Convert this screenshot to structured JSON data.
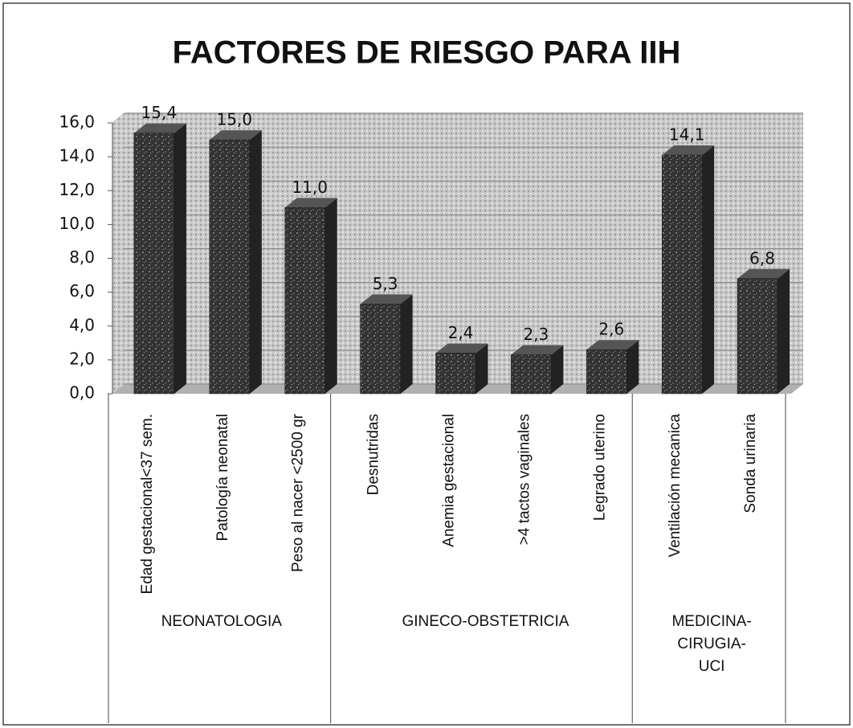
{
  "chart_data": {
    "type": "bar",
    "title": "FACTORES DE RIESGO PARA IIH",
    "groups": [
      {
        "name": "NEONATOLOGIA",
        "categories": [
          "Edad gestacional<37 sem.",
          "Patología neonatal",
          "Peso al nacer <2500 gr"
        ],
        "values": [
          15.4,
          15.0,
          11.0
        ],
        "value_labels": [
          "15,4",
          "15,0",
          "11,0"
        ]
      },
      {
        "name": "GINECO-OBSTETRICIA",
        "categories": [
          "Desnutridas",
          "Anemia gestacional",
          ">4 tactos vaginales",
          "Legrado uterino"
        ],
        "values": [
          5.3,
          2.4,
          2.3,
          2.6
        ],
        "value_labels": [
          "5,3",
          "2,4",
          "2,3",
          "2,6"
        ]
      },
      {
        "name": "MEDICINA-CIRUGIA-UCI",
        "categories": [
          "Ventilación mecanica",
          "Sonda urinaria"
        ],
        "values": [
          14.1,
          6.8
        ],
        "value_labels": [
          "14,1",
          "6,8"
        ]
      }
    ],
    "color": "#3a3a3a",
    "ylim": [
      0,
      16
    ],
    "yticks": [
      {
        "value": 0,
        "label": "0,0"
      },
      {
        "value": 2,
        "label": "2,0"
      },
      {
        "value": 4,
        "label": "4,0"
      },
      {
        "value": 6,
        "label": "6,0"
      },
      {
        "value": 8,
        "label": "8,0"
      },
      {
        "value": 10,
        "label": "10,0"
      },
      {
        "value": 12,
        "label": "12,0"
      },
      {
        "value": 14,
        "label": "14,0"
      },
      {
        "value": 16,
        "label": "16,0"
      }
    ],
    "grid": true
  }
}
